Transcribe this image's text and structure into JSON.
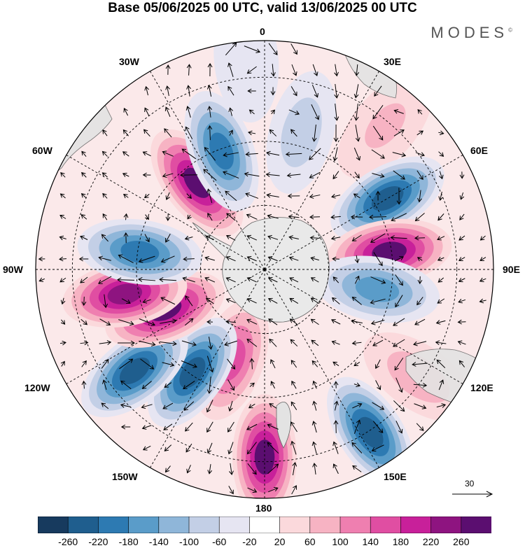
{
  "title": "Base 05/06/2025 00 UTC, valid 13/06/2025 00 UTC",
  "brand": "MODES",
  "brand_mark": "©",
  "longitude_labels": {
    "top": "0",
    "top_right": "30E",
    "right_upper": "60E",
    "right": "90E",
    "right_lower": "120E",
    "bottom_right": "150E",
    "bottom": "180",
    "bottom_left": "150W",
    "left_lower": "120W",
    "left": "90W",
    "left_upper": "60W",
    "top_left": "30W"
  },
  "vector_scale": {
    "label": "30",
    "icon": "arrow-right-icon"
  },
  "colorbar": {
    "ticks": [
      "-260",
      "-220",
      "-180",
      "-140",
      "-100",
      "-60",
      "-20",
      "20",
      "60",
      "100",
      "140",
      "180",
      "220",
      "260"
    ],
    "colors": [
      "#173a5e",
      "#1f5e8e",
      "#2d7ab2",
      "#5a9cc9",
      "#8fb6d9",
      "#c3cfe6",
      "#e6e5f2",
      "#ffffff",
      "#fbd9dc",
      "#f7b3c3",
      "#ef7fb0",
      "#e04ea2",
      "#c8209a",
      "#8e1480",
      "#5b0e70"
    ]
  },
  "map": {
    "projection": "south-polar-stereographic",
    "anomalies": [
      {
        "lon": 15,
        "r": 0.62,
        "value": -60
      },
      {
        "lon": 40,
        "r": 0.82,
        "value": 80
      },
      {
        "lon": 60,
        "r": 0.62,
        "value": -220
      },
      {
        "lon": 82,
        "r": 0.55,
        "value": 260
      },
      {
        "lon": 100,
        "r": 0.5,
        "value": -140
      },
      {
        "lon": 125,
        "r": 0.82,
        "value": 60
      },
      {
        "lon": 147,
        "r": 0.85,
        "value": -220
      },
      {
        "lon": 180,
        "r": 0.82,
        "value": 260
      },
      {
        "lon": 200,
        "r": 0.42,
        "value": 140
      },
      {
        "lon": 215,
        "r": 0.55,
        "value": -220
      },
      {
        "lon": 232,
        "r": 0.72,
        "value": -220
      },
      {
        "lon": 248,
        "r": 0.47,
        "value": 260
      },
      {
        "lon": 260,
        "r": 0.62,
        "value": 220
      },
      {
        "lon": 278,
        "r": 0.55,
        "value": -180
      },
      {
        "lon": 322,
        "r": 0.48,
        "value": 260
      },
      {
        "lon": 340,
        "r": 0.55,
        "value": -180
      },
      {
        "lon": 355,
        "r": 0.92,
        "value": -20
      }
    ]
  }
}
